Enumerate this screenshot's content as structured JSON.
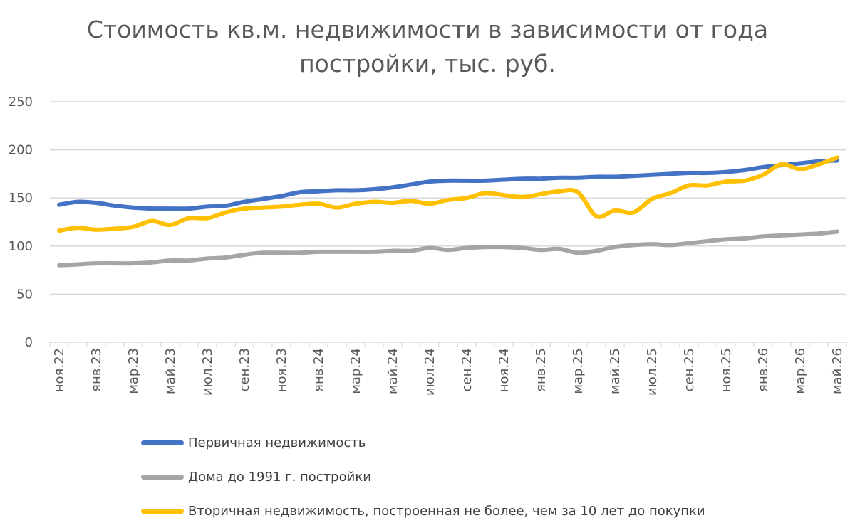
{
  "chart_data": {
    "type": "line",
    "title_line1": "Стоимость кв.м. недвижимости в зависимости от года",
    "title_line2": "постройки, тыс. руб.",
    "ylim": [
      0,
      250
    ],
    "yticks": [
      0,
      50,
      100,
      150,
      200,
      250
    ],
    "grid": true,
    "legend_position": "bottom",
    "x": [
      "ноя.22",
      "дек.22",
      "янв.23",
      "фев.23",
      "мар.23",
      "апр.23",
      "май.23",
      "июн.23",
      "июл.23",
      "авг.23",
      "сен.23",
      "окт.23",
      "ноя.23",
      "дек.23",
      "янв.24",
      "фев.24",
      "мар.24",
      "апр.24",
      "май.24",
      "июн.24",
      "июл.24",
      "авг.24",
      "сен.24",
      "окт.24",
      "ноя.24",
      "дек.24",
      "янв.25",
      "фев.25",
      "мар.25",
      "апр.25",
      "май.25",
      "июн.25",
      "июл.25",
      "авг.25",
      "сен.25",
      "окт.25",
      "ноя.25",
      "дек.25",
      "янв.26",
      "фев.26",
      "мар.26",
      "апр.26",
      "май.26"
    ],
    "x_tick_labels": [
      "ноя.22",
      "янв.23",
      "мар.23",
      "май.23",
      "июл.23",
      "сен.23",
      "ноя.23",
      "янв.24",
      "мар.24",
      "май.24",
      "июл.24",
      "сен.24",
      "ноя.24",
      "янв.25",
      "мар.25",
      "май.25",
      "июл.25",
      "сен.25",
      "ноя.25",
      "янв.26",
      "мар.26",
      "май.26"
    ],
    "series": [
      {
        "name": "Первичная недвижимость",
        "color": "#4472C4",
        "values": [
          143,
          146,
          145,
          142,
          140,
          139,
          139,
          139,
          141,
          142,
          146,
          149,
          152,
          156,
          157,
          158,
          158,
          159,
          161,
          164,
          167,
          168,
          168,
          168,
          169,
          170,
          170,
          171,
          171,
          172,
          172,
          173,
          174,
          175,
          176,
          176,
          177,
          179,
          182,
          184,
          186,
          188,
          189
        ]
      },
      {
        "name": "Дома до 1991 г. постройки",
        "color": "#A5A5A5",
        "values": [
          80,
          81,
          82,
          82,
          82,
          83,
          85,
          85,
          87,
          88,
          91,
          93,
          93,
          93,
          94,
          94,
          94,
          94,
          95,
          95,
          98,
          96,
          98,
          99,
          99,
          98,
          96,
          97,
          93,
          95,
          99,
          101,
          102,
          101,
          103,
          105,
          107,
          108,
          110,
          111,
          112,
          113,
          115
        ]
      },
      {
        "name": "Вторичная недвижимость, построенная не более, чем за 10 лет до покупки",
        "color": "#FFC000",
        "values": [
          116,
          119,
          117,
          118,
          120,
          126,
          122,
          129,
          129,
          135,
          139,
          140,
          141,
          143,
          144,
          140,
          144,
          146,
          145,
          147,
          144,
          148,
          150,
          155,
          153,
          151,
          154,
          157,
          156,
          131,
          137,
          135,
          149,
          155,
          163,
          163,
          167,
          168,
          174,
          185,
          180,
          185,
          192
        ]
      }
    ]
  }
}
